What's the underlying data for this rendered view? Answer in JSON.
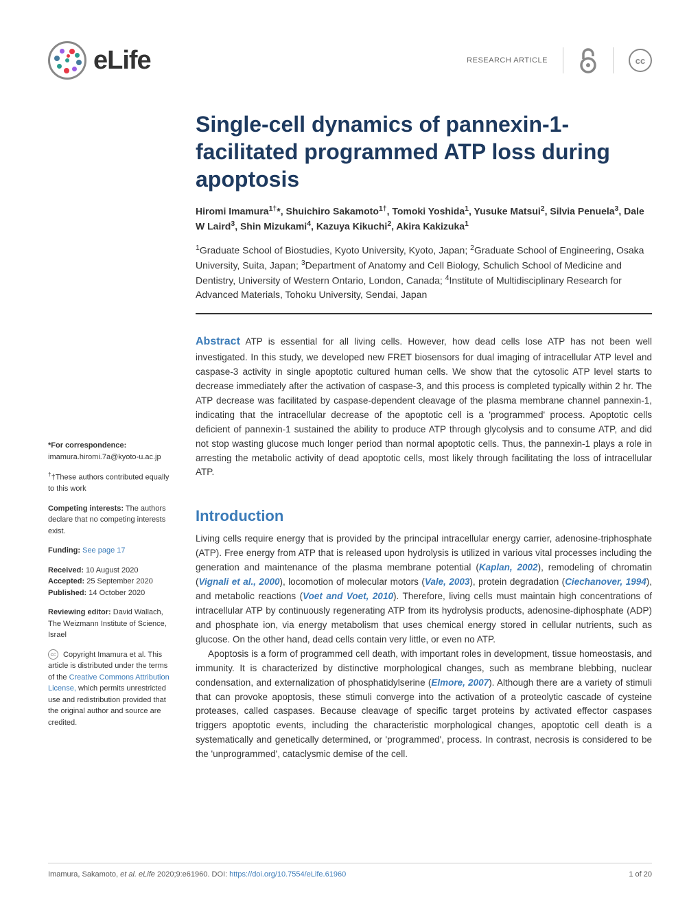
{
  "header": {
    "journal_name": "eLife",
    "article_type": "RESEARCH ARTICLE",
    "cc_label": "cc",
    "logo_colors": {
      "red": "#e63946",
      "green": "#2a9d8f",
      "blue": "#457b9d",
      "purple": "#9b5de5",
      "border": "#888888"
    },
    "oa_color": "#888888"
  },
  "title": "Single-cell dynamics of pannexin-1-facilitated programmed ATP loss during apoptosis",
  "authors_html": "Hiromi Imamura<sup>1†</sup>*, Shuichiro Sakamoto<sup>1†</sup>, Tomoki Yoshida<sup>1</sup>, Yusuke Matsui<sup>2</sup>, Silvia Penuela<sup>3</sup>, Dale W Laird<sup>3</sup>, Shin Mizukami<sup>4</sup>, Kazuya Kikuchi<sup>2</sup>, Akira Kakizuka<sup>1</sup>",
  "affiliations_html": "<sup>1</sup>Graduate School of Biostudies, Kyoto University, Kyoto, Japan; <sup>2</sup>Graduate School of Engineering, Osaka University, Suita, Japan; <sup>3</sup>Department of Anatomy and Cell Biology, Schulich School of Medicine and Dentistry, University of Western Ontario, London, Canada; <sup>4</sup>Institute of Multidisciplinary Research for Advanced Materials, Tohoku University, Sendai, Japan",
  "abstract": {
    "label": "Abstract",
    "text": "ATP is essential for all living cells. However, how dead cells lose ATP has not been well investigated. In this study, we developed new FRET biosensors for dual imaging of intracellular ATP level and caspase-3 activity in single apoptotic cultured human cells. We show that the cytosolic ATP level starts to decrease immediately after the activation of caspase-3, and this process is completed typically within 2 hr. The ATP decrease was facilitated by caspase-dependent cleavage of the plasma membrane channel pannexin-1, indicating that the intracellular decrease of the apoptotic cell is a 'programmed' process. Apoptotic cells deficient of pannexin-1 sustained the ability to produce ATP through glycolysis and to consume ATP, and did not stop wasting glucose much longer period than normal apoptotic cells. Thus, the pannexin-1 plays a role in arresting the metabolic activity of dead apoptotic cells, most likely through facilitating the loss of intracellular ATP."
  },
  "introduction": {
    "heading": "Introduction",
    "para1_html": "Living cells require energy that is provided by the principal intracellular energy carrier, adenosine-triphosphate (ATP). Free energy from ATP that is released upon hydrolysis is utilized in various vital processes including the generation and maintenance of the plasma membrane potential (<span class='cite'>Kaplan, 2002</span>), remodeling of chromatin (<span class='cite'>Vignali et al., 2000</span>), locomotion of molecular motors (<span class='cite'>Vale, 2003</span>), protein degradation (<span class='cite'>Ciechanover, 1994</span>), and metabolic reactions (<span class='cite'>Voet and Voet, 2010</span>). Therefore, living cells must maintain high concentrations of intracellular ATP by continuously regenerating ATP from its hydrolysis products, adenosine-diphosphate (ADP) and phosphate ion, via energy metabolism that uses chemical energy stored in cellular nutrients, such as glucose. On the other hand, dead cells contain very little, or even no ATP.",
    "para2_html": "Apoptosis is a form of programmed cell death, with important roles in development, tissue homeostasis, and immunity. It is characterized by distinctive morphological changes, such as membrane blebbing, nuclear condensation, and externalization of phosphatidylserine (<span class='cite'>Elmore, 2007</span>). Although there are a variety of stimuli that can provoke apoptosis, these stimuli converge into the activation of a proteolytic cascade of cysteine proteases, called caspases. Because cleavage of specific target proteins by activated effector caspases triggers apoptotic events, including the characteristic morphological changes, apoptotic cell death is a systematically and genetically determined, or 'programmed', process. In contrast, necrosis is considered to be the 'unprogrammed', cataclysmic demise of the cell."
  },
  "sidebar": {
    "correspondence_label": "*For correspondence:",
    "correspondence_email": "imamura.hiromi.7a@kyoto-u.ac.jp",
    "contrib_note": "†These authors contributed equally to this work",
    "competing_label": "Competing interests:",
    "competing_text": " The authors declare that no competing interests exist.",
    "funding_label": "Funding:",
    "funding_link": " See page 17",
    "received_label": "Received:",
    "received_date": " 10 August 2020",
    "accepted_label": "Accepted:",
    "accepted_date": " 25 September 2020",
    "published_label": "Published:",
    "published_date": " 14 October 2020",
    "editor_label": "Reviewing editor:",
    "editor_text": " David Wallach, The Weizmann Institute of Science, Israel",
    "copyright_text": " Copyright Imamura et al. This article is distributed under the terms of the ",
    "license_link": "Creative Commons Attribution License,",
    "license_tail": " which permits unrestricted use and redistribution provided that the original author and source are credited."
  },
  "footer": {
    "citation": "Imamura, Sakamoto, ",
    "citation_italic": "et al. eLife",
    "citation_tail": " 2020;9:e61960. DOI: ",
    "doi": "https://doi.org/10.7554/eLife.61960",
    "page": "1 of 20"
  },
  "colors": {
    "title_color": "#1e3a5f",
    "link_color": "#3b7bb8",
    "text_color": "#333333"
  }
}
